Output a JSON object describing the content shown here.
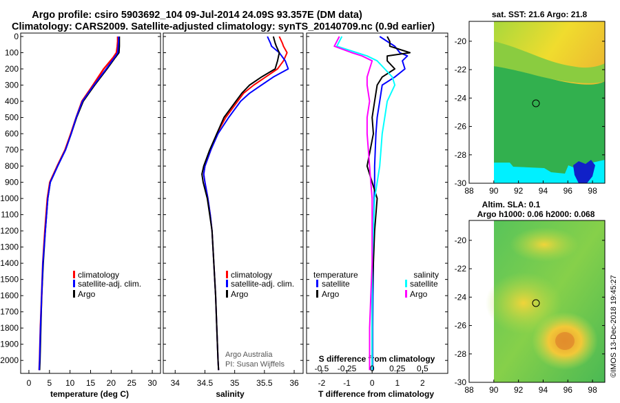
{
  "titles": {
    "line1": "Argo profile: csiro 5903692_104 09-Jul-2014 24.09S 93.357E (DM data)",
    "line2": "Climatology: CARS2009. Satellite-adjusted climatology: synTS_20140709.nc (0.9d earlier)"
  },
  "depth_ticks": [
    "0",
    "100",
    "200",
    "300",
    "400",
    "500",
    "600",
    "700",
    "800",
    "900",
    "1000",
    "1100",
    "1200",
    "1300",
    "1400",
    "1500",
    "1600",
    "1700",
    "1800",
    "1900",
    "2000"
  ],
  "colors": {
    "climatology": "#ff0000",
    "satellite_adj": "#0000ff",
    "argo": "#000000",
    "satellite_s": "#00ffff",
    "argo_s": "#ff00ff"
  },
  "chart_data": [
    {
      "type": "line",
      "id": "temperature",
      "xlabel": "temperature (deg C)",
      "ylabel": "depth",
      "xlim": [
        -2,
        32
      ],
      "ylim": [
        2080,
        0
      ],
      "xticks": [
        "0",
        "5",
        "10",
        "15",
        "20",
        "25",
        "30"
      ],
      "legend": [
        "climatology",
        "satellite-adj. clim.",
        "Argo"
      ],
      "depth": [
        0,
        30,
        60,
        100,
        130,
        200,
        300,
        400,
        500,
        600,
        700,
        800,
        900,
        1000,
        1200,
        1400,
        1600,
        1800,
        2000,
        2060
      ],
      "series": [
        {
          "name": "climatology",
          "values": [
            21.6,
            21.6,
            21.5,
            21.3,
            20.5,
            18.2,
            15.6,
            12.9,
            11.5,
            10.2,
            8.8,
            6.9,
            5.1,
            4.5,
            3.9,
            3.4,
            3.1,
            2.8,
            2.6,
            2.5
          ]
        },
        {
          "name": "satellite-adj. clim.",
          "values": [
            22.0,
            22.0,
            22.0,
            21.9,
            21.0,
            19.0,
            16.0,
            13.2,
            11.6,
            10.3,
            8.9,
            7.0,
            5.2,
            4.6,
            4.0,
            3.5,
            3.1,
            2.9,
            2.7,
            2.6
          ]
        },
        {
          "name": "Argo",
          "values": [
            21.8,
            21.8,
            21.7,
            21.6,
            20.8,
            18.8,
            15.8,
            13.0,
            11.5,
            10.3,
            8.9,
            7.0,
            5.2,
            4.6,
            4.0,
            3.4,
            3.1,
            2.8,
            2.6,
            2.5
          ]
        }
      ]
    },
    {
      "type": "line",
      "id": "salinity",
      "xlabel": "salinity",
      "ylabel": "depth",
      "xlim": [
        33.8,
        36.15
      ],
      "ylim": [
        2080,
        0
      ],
      "xticks": [
        "34",
        "34.5",
        "35",
        "35.5",
        "36"
      ],
      "legend": [
        "climatology",
        "satellite-adj. clim.",
        "Argo"
      ],
      "credit1": "Argo Australia",
      "credit2": "PI: Susan Wijffels",
      "depth": [
        0,
        40,
        60,
        100,
        150,
        200,
        250,
        300,
        350,
        400,
        500,
        600,
        700,
        800,
        850,
        900,
        1000,
        1100,
        1200,
        1400,
        1600,
        1800,
        2000,
        2060
      ],
      "series": [
        {
          "name": "climatology",
          "values": [
            35.75,
            35.8,
            35.82,
            35.88,
            35.82,
            35.72,
            35.52,
            35.32,
            35.15,
            35.05,
            34.85,
            34.7,
            34.6,
            34.5,
            34.48,
            34.5,
            34.55,
            34.59,
            34.62,
            34.65,
            34.68,
            34.7,
            34.72,
            34.73
          ]
        },
        {
          "name": "satellite-adj. clim.",
          "values": [
            35.55,
            35.6,
            35.62,
            35.75,
            35.85,
            35.9,
            35.65,
            35.45,
            35.25,
            35.1,
            34.9,
            34.72,
            34.6,
            34.5,
            34.48,
            34.5,
            34.55,
            34.59,
            34.62,
            34.65,
            34.68,
            34.7,
            34.72,
            34.73
          ]
        },
        {
          "name": "Argo",
          "values": [
            35.65,
            35.68,
            35.7,
            35.75,
            35.72,
            35.68,
            35.45,
            35.25,
            35.12,
            35.02,
            34.82,
            34.7,
            34.58,
            34.48,
            34.45,
            34.47,
            34.54,
            34.58,
            34.62,
            34.65,
            34.68,
            34.7,
            34.72,
            34.73
          ]
        }
      ]
    },
    {
      "type": "line",
      "id": "difference",
      "xlabel": "T difference from climatology",
      "xlabel2": "S difference from climatology",
      "ylabel": "depth",
      "xlim": [
        -2.6,
        3.0
      ],
      "ylim": [
        2080,
        0
      ],
      "xticks_t": [
        "-2",
        "-1",
        "0",
        "1",
        "2"
      ],
      "xticks_s": [
        "-0.5",
        "-0.25",
        "0",
        "0.25",
        "0.5"
      ],
      "legend_t_title": "temperature",
      "legend_s_title": "salinity",
      "legend_t": [
        "satellite",
        "Argo"
      ],
      "legend_s": [
        "satellite",
        "Argo"
      ],
      "depth": [
        0,
        30,
        60,
        100,
        120,
        150,
        200,
        250,
        300,
        400,
        500,
        600,
        800,
        900,
        1000,
        1200,
        1400,
        1600,
        1800,
        2000,
        2060
      ],
      "series": [
        {
          "name": "T satellite",
          "values": [
            0.3,
            0.6,
            0.9,
            1.1,
            1.4,
            1.2,
            1.3,
            0.9,
            0.4,
            0.3,
            0.2,
            0.15,
            0.1,
            0.1,
            0.08,
            0.05,
            0.05,
            0.03,
            0.02,
            0.02,
            0.02
          ]
        },
        {
          "name": "T Argo",
          "values": [
            0.6,
            0.7,
            0.7,
            1.5,
            0.6,
            0.6,
            0.9,
            0.4,
            0.2,
            0.1,
            0.0,
            0.05,
            -0.2,
            0.0,
            0.2,
            0.1,
            0.05,
            0.0,
            0.0,
            0.0,
            0.0
          ]
        },
        {
          "name": "S satellite",
          "values": [
            -1.2,
            -1.3,
            -1.4,
            -0.6,
            -0.2,
            0.2,
            0.5,
            0.8,
            0.9,
            0.6,
            0.5,
            0.4,
            0.3,
            0.2,
            0.1,
            0.05,
            0.0,
            0.0,
            0.0,
            0.0,
            0.0
          ]
        },
        {
          "name": "S Argo",
          "values": [
            -1.3,
            -1.4,
            -1.5,
            -0.8,
            -0.4,
            0.0,
            -0.1,
            -0.2,
            -0.2,
            -0.1,
            -0.2,
            -0.2,
            -0.1,
            -0.05,
            0.0,
            0.0,
            0.0,
            -0.05,
            -0.1,
            -0.1,
            -0.1
          ]
        }
      ]
    },
    {
      "type": "heatmap",
      "id": "sst_map",
      "title": "sat. SST: 21.6 Argo: 21.8",
      "xlim": [
        88,
        99
      ],
      "ylim": [
        -30,
        -18.6
      ],
      "xticks": [
        "88",
        "90",
        "92",
        "94",
        "96",
        "98"
      ],
      "yticks": [
        "-20",
        "-22",
        "-24",
        "-26",
        "-28",
        "-30"
      ],
      "argo_position": {
        "lon": 93.357,
        "lat": -24.09
      }
    },
    {
      "type": "heatmap",
      "id": "sla_map",
      "title": "Altim. SLA: 0.1",
      "subtitle": "Argo h1000: 0.06 h2000: 0.068",
      "xlim": [
        88,
        99
      ],
      "ylim": [
        -30,
        -18.6
      ],
      "xticks": [
        "88",
        "90",
        "92",
        "94",
        "96",
        "98"
      ],
      "yticks": [
        "-20",
        "-22",
        "-24",
        "-26",
        "-28",
        "-30"
      ],
      "argo_position": {
        "lon": 93.357,
        "lat": -24.09
      }
    }
  ],
  "footer_stamp": "©IMOS 13-Dec-2018 19:45:27"
}
